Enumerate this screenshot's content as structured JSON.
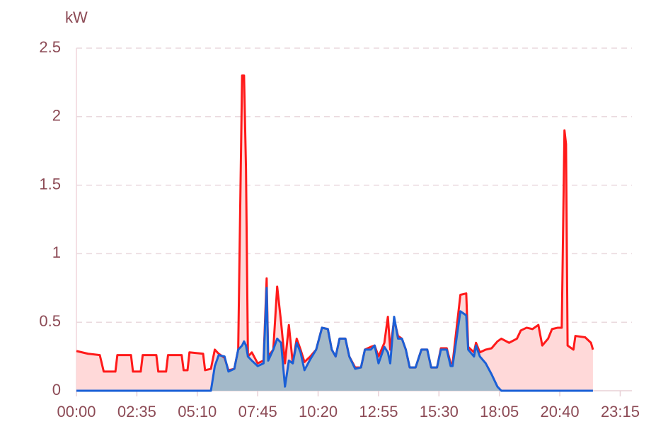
{
  "chart_data": {
    "type": "area",
    "y_label": "kW",
    "x": [
      "00:00",
      "00:30",
      "01:00",
      "01:10",
      "01:40",
      "01:45",
      "02:20",
      "02:25",
      "02:45",
      "02:50",
      "03:25",
      "03:30",
      "03:50",
      "03:55",
      "04:30",
      "04:35",
      "04:45",
      "04:50",
      "05:25",
      "05:30",
      "05:45",
      "05:55",
      "06:05",
      "06:20",
      "06:30",
      "06:45",
      "06:55",
      "07:05",
      "07:10",
      "07:15",
      "07:20",
      "07:30",
      "07:45",
      "08:00",
      "08:08",
      "08:12",
      "08:25",
      "08:35",
      "08:45",
      "08:55",
      "09:05",
      "09:15",
      "09:25",
      "09:35",
      "09:45",
      "10:00",
      "10:15",
      "10:30",
      "10:45",
      "10:55",
      "11:05",
      "11:15",
      "11:30",
      "11:40",
      "11:55",
      "12:10",
      "12:20",
      "12:35",
      "12:45",
      "12:55",
      "13:10",
      "13:19",
      "13:25",
      "13:35",
      "13:45",
      "13:55",
      "14:05",
      "14:15",
      "14:30",
      "14:45",
      "15:00",
      "15:10",
      "15:25",
      "15:35",
      "15:50",
      "16:00",
      "16:05",
      "16:25",
      "16:40",
      "16:45",
      "17:00",
      "17:05",
      "17:15",
      "17:30",
      "17:45",
      "18:00",
      "18:10",
      "18:30",
      "18:50",
      "19:00",
      "19:15",
      "19:30",
      "19:45",
      "19:55",
      "20:10",
      "20:20",
      "20:35",
      "20:45",
      "20:52",
      "20:56",
      "21:00",
      "21:15",
      "21:20",
      "21:45",
      "22:00",
      "22:05"
    ],
    "series": [
      {
        "color": "#ff1a1a",
        "fill": "#ffd9d9",
        "values": [
          0.29,
          0.27,
          0.26,
          0.14,
          0.14,
          0.26,
          0.26,
          0.14,
          0.14,
          0.26,
          0.26,
          0.14,
          0.14,
          0.26,
          0.26,
          0.15,
          0.15,
          0.28,
          0.27,
          0.15,
          0.16,
          0.3,
          0.27,
          0.24,
          0.15,
          0.16,
          0.3,
          2.3,
          2.3,
          1.62,
          0.25,
          0.28,
          0.2,
          0.22,
          0.82,
          0.25,
          0.3,
          0.76,
          0.5,
          0.2,
          0.48,
          0.2,
          0.38,
          0.3,
          0.21,
          0.25,
          0.3,
          0.46,
          0.45,
          0.3,
          0.25,
          0.38,
          0.38,
          0.25,
          0.17,
          0.17,
          0.3,
          0.32,
          0.33,
          0.25,
          0.35,
          0.54,
          0.3,
          0.52,
          0.4,
          0.38,
          0.3,
          0.17,
          0.17,
          0.3,
          0.3,
          0.17,
          0.17,
          0.31,
          0.31,
          0.2,
          0.2,
          0.7,
          0.71,
          0.32,
          0.28,
          0.35,
          0.28,
          0.3,
          0.31,
          0.36,
          0.38,
          0.35,
          0.38,
          0.44,
          0.46,
          0.45,
          0.48,
          0.33,
          0.38,
          0.45,
          0.46,
          0.46,
          1.9,
          1.8,
          0.33,
          0.3,
          0.4,
          0.39,
          0.35,
          0.3
        ]
      },
      {
        "color": "#1a5fd6",
        "fill": "#a3b9c9",
        "values": [
          0,
          0,
          0,
          0,
          0,
          0,
          0,
          0,
          0,
          0,
          0,
          0,
          0,
          0,
          0,
          0,
          0,
          0,
          0,
          0,
          0,
          0.18,
          0.26,
          0.25,
          0.14,
          0.16,
          0.3,
          0.33,
          0.36,
          0.33,
          0.25,
          0.22,
          0.18,
          0.2,
          0.75,
          0.22,
          0.3,
          0.38,
          0.35,
          0.03,
          0.22,
          0.2,
          0.35,
          0.28,
          0.15,
          0.23,
          0.3,
          0.46,
          0.45,
          0.3,
          0.25,
          0.38,
          0.38,
          0.25,
          0.16,
          0.17,
          0.3,
          0.3,
          0.33,
          0.2,
          0.32,
          0.28,
          0.2,
          0.54,
          0.38,
          0.38,
          0.3,
          0.17,
          0.17,
          0.3,
          0.3,
          0.17,
          0.17,
          0.3,
          0.3,
          0.18,
          0.18,
          0.58,
          0.55,
          0.3,
          0.25,
          0.33,
          0.25,
          0.2,
          0.12,
          0.03,
          0,
          0,
          0,
          0,
          0,
          0,
          0,
          0,
          0,
          0,
          0,
          0,
          0,
          0,
          0,
          0,
          0,
          0,
          0,
          0
        ]
      }
    ],
    "xlim": [
      "00:00",
      "23:45"
    ],
    "xticks": [
      "00:00",
      "02:35",
      "05:10",
      "07:45",
      "10:20",
      "12:55",
      "15:30",
      "18:05",
      "20:40",
      "23:15"
    ],
    "ylim": [
      0,
      2.5
    ],
    "yticks": [
      0,
      0.5,
      1,
      1.5,
      2,
      2.5
    ],
    "grid": true
  }
}
